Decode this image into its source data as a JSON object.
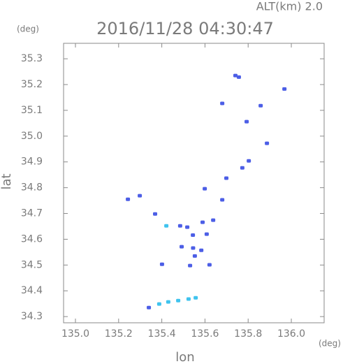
{
  "chart_data": {
    "type": "scatter",
    "title": "2016/11/28 04:30:47",
    "subtitle": "ALT(km) 2.0",
    "x_label": "lon",
    "y_label": "lat",
    "x_unit": "(deg)",
    "y_unit": "(deg)",
    "xlim": [
      134.945,
      136.152
    ],
    "ylim": [
      34.276,
      35.36
    ],
    "xticks": [
      {
        "value": 135.0,
        "label": "135.0"
      },
      135.2,
      135.4,
      135.6,
      135.8,
      {
        "value": 136.0,
        "label": "136.0"
      }
    ],
    "yticks": [
      34.3,
      34.4,
      34.5,
      34.6,
      34.7,
      34.8,
      34.9,
      {
        "value": 35.0,
        "label": "35.0"
      },
      35.1,
      35.2,
      35.3
    ],
    "series": [
      {
        "color": "#4c5ee6",
        "x": [
          135.741,
          135.757,
          135.968,
          135.858,
          135.68,
          135.793,
          135.773,
          135.803,
          135.699,
          135.599,
          135.68,
          135.243,
          135.298,
          135.369,
          135.485,
          135.518,
          135.589,
          135.638,
          135.608,
          135.492,
          135.545,
          135.583,
          135.531,
          135.621,
          135.401,
          135.887,
          135.553,
          135.544,
          135.34
        ],
        "y": [
          35.235,
          35.229,
          35.183,
          35.118,
          35.127,
          35.056,
          34.877,
          34.904,
          34.837,
          34.796,
          34.753,
          34.755,
          34.769,
          34.698,
          34.652,
          34.647,
          34.666,
          34.674,
          34.62,
          34.571,
          34.566,
          34.557,
          34.498,
          34.501,
          34.503,
          34.972,
          34.535,
          34.616,
          34.335
        ]
      },
      {
        "color": "#3fc3ee",
        "x": [
          135.421,
          135.388,
          135.43,
          135.476,
          135.524,
          135.557
        ],
        "y": [
          34.652,
          34.349,
          34.357,
          34.362,
          34.368,
          34.373
        ]
      }
    ]
  }
}
